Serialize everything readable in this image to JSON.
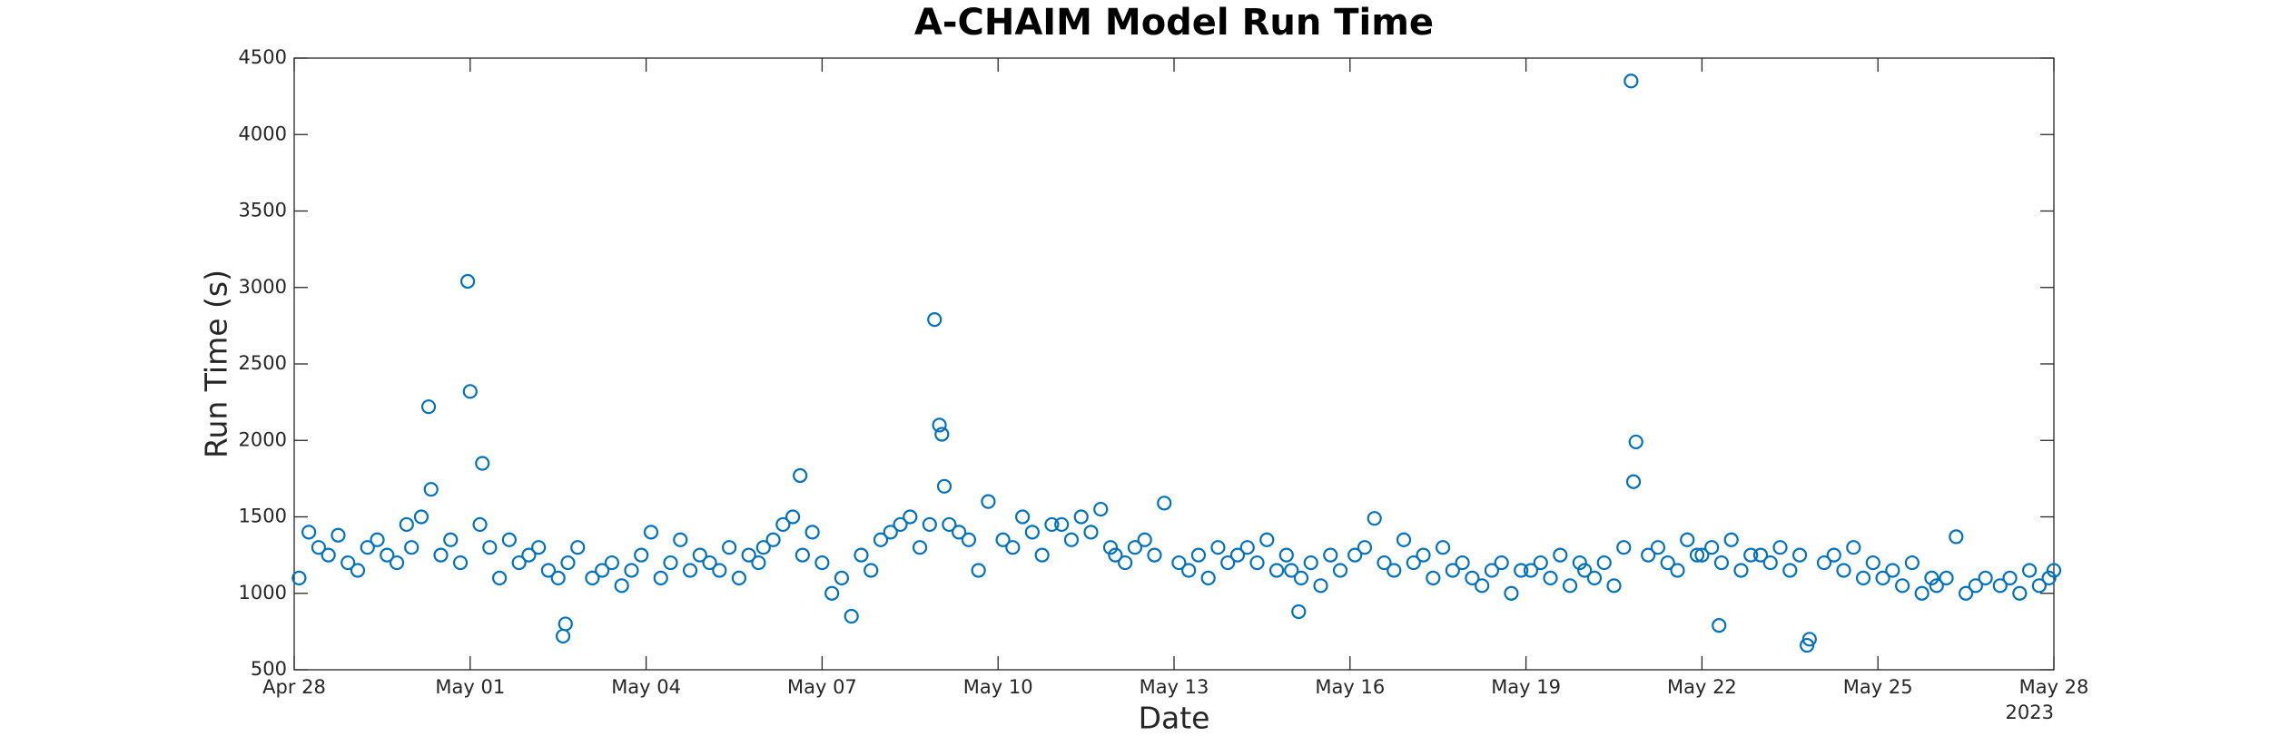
{
  "chart_data": {
    "type": "scatter",
    "title": "A-CHAIM Model Run Time",
    "x_label": "Date",
    "y_label": "Run Time (s)",
    "x_year_label": "2023",
    "color": "#0072BD",
    "grid": false,
    "xlim": [
      "2023-04-28T00:00",
      "2023-05-28T00:00"
    ],
    "xticks": [
      {
        "value": "2023-04-28T00:00",
        "label": "Apr 28"
      },
      {
        "value": "2023-05-01T00:00",
        "label": "May 01"
      },
      {
        "value": "2023-05-04T00:00",
        "label": "May 04"
      },
      {
        "value": "2023-05-07T00:00",
        "label": "May 07"
      },
      {
        "value": "2023-05-10T00:00",
        "label": "May 10"
      },
      {
        "value": "2023-05-13T00:00",
        "label": "May 13"
      },
      {
        "value": "2023-05-16T00:00",
        "label": "May 16"
      },
      {
        "value": "2023-05-19T00:00",
        "label": "May 19"
      },
      {
        "value": "2023-05-22T00:00",
        "label": "May 22"
      },
      {
        "value": "2023-05-25T00:00",
        "label": "May 25"
      },
      {
        "value": "2023-05-28T00:00",
        "label": "May 28"
      }
    ],
    "ylim": [
      500,
      4500
    ],
    "yticks": [
      500,
      1000,
      1500,
      2000,
      2500,
      3000,
      3500,
      4000,
      4500
    ],
    "x": [
      "2023-04-28T02:00",
      "2023-04-28T06:00",
      "2023-04-28T10:00",
      "2023-04-28T14:00",
      "2023-04-28T18:00",
      "2023-04-28T22:00",
      "2023-04-29T02:00",
      "2023-04-29T06:00",
      "2023-04-29T10:00",
      "2023-04-29T14:00",
      "2023-04-29T18:00",
      "2023-04-29T22:00",
      "2023-04-30T00:00",
      "2023-04-30T04:00",
      "2023-04-30T07:00",
      "2023-04-30T08:00",
      "2023-04-30T12:00",
      "2023-04-30T16:00",
      "2023-04-30T20:00",
      "2023-04-30T23:00",
      "2023-05-01T00:00",
      "2023-05-01T04:00",
      "2023-05-01T05:00",
      "2023-05-01T08:00",
      "2023-05-01T12:00",
      "2023-05-01T16:00",
      "2023-05-01T20:00",
      "2023-05-02T00:00",
      "2023-05-02T04:00",
      "2023-05-02T08:00",
      "2023-05-02T12:00",
      "2023-05-02T14:00",
      "2023-05-02T15:00",
      "2023-05-02T16:00",
      "2023-05-02T20:00",
      "2023-05-03T02:00",
      "2023-05-03T06:00",
      "2023-05-03T10:00",
      "2023-05-03T14:00",
      "2023-05-03T18:00",
      "2023-05-03T22:00",
      "2023-05-04T02:00",
      "2023-05-04T06:00",
      "2023-05-04T10:00",
      "2023-05-04T14:00",
      "2023-05-04T18:00",
      "2023-05-04T22:00",
      "2023-05-05T02:00",
      "2023-05-05T06:00",
      "2023-05-05T10:00",
      "2023-05-05T14:00",
      "2023-05-05T18:00",
      "2023-05-05T22:00",
      "2023-05-06T00:00",
      "2023-05-06T04:00",
      "2023-05-06T08:00",
      "2023-05-06T12:00",
      "2023-05-06T15:00",
      "2023-05-06T16:00",
      "2023-05-06T20:00",
      "2023-05-07T00:00",
      "2023-05-07T04:00",
      "2023-05-07T08:00",
      "2023-05-07T12:00",
      "2023-05-07T16:00",
      "2023-05-07T20:00",
      "2023-05-08T00:00",
      "2023-05-08T04:00",
      "2023-05-08T08:00",
      "2023-05-08T12:00",
      "2023-05-08T16:00",
      "2023-05-08T20:00",
      "2023-05-08T22:00",
      "2023-05-09T00:00",
      "2023-05-09T01:00",
      "2023-05-09T02:00",
      "2023-05-09T04:00",
      "2023-05-09T08:00",
      "2023-05-09T12:00",
      "2023-05-09T16:00",
      "2023-05-09T20:00",
      "2023-05-10T02:00",
      "2023-05-10T06:00",
      "2023-05-10T10:00",
      "2023-05-10T14:00",
      "2023-05-10T18:00",
      "2023-05-10T22:00",
      "2023-05-11T02:00",
      "2023-05-11T06:00",
      "2023-05-11T10:00",
      "2023-05-11T14:00",
      "2023-05-11T18:00",
      "2023-05-11T22:00",
      "2023-05-12T00:00",
      "2023-05-12T04:00",
      "2023-05-12T08:00",
      "2023-05-12T12:00",
      "2023-05-12T16:00",
      "2023-05-12T20:00",
      "2023-05-13T02:00",
      "2023-05-13T06:00",
      "2023-05-13T10:00",
      "2023-05-13T14:00",
      "2023-05-13T18:00",
      "2023-05-13T22:00",
      "2023-05-14T02:00",
      "2023-05-14T06:00",
      "2023-05-14T10:00",
      "2023-05-14T14:00",
      "2023-05-14T18:00",
      "2023-05-14T22:00",
      "2023-05-15T00:00",
      "2023-05-15T03:00",
      "2023-05-15T04:00",
      "2023-05-15T08:00",
      "2023-05-15T12:00",
      "2023-05-15T16:00",
      "2023-05-15T20:00",
      "2023-05-16T02:00",
      "2023-05-16T06:00",
      "2023-05-16T10:00",
      "2023-05-16T14:00",
      "2023-05-16T18:00",
      "2023-05-16T22:00",
      "2023-05-17T02:00",
      "2023-05-17T06:00",
      "2023-05-17T10:00",
      "2023-05-17T14:00",
      "2023-05-17T18:00",
      "2023-05-17T22:00",
      "2023-05-18T02:00",
      "2023-05-18T06:00",
      "2023-05-18T10:00",
      "2023-05-18T14:00",
      "2023-05-18T18:00",
      "2023-05-18T22:00",
      "2023-05-19T02:00",
      "2023-05-19T06:00",
      "2023-05-19T10:00",
      "2023-05-19T14:00",
      "2023-05-19T18:00",
      "2023-05-19T22:00",
      "2023-05-20T00:00",
      "2023-05-20T04:00",
      "2023-05-20T08:00",
      "2023-05-20T12:00",
      "2023-05-20T16:00",
      "2023-05-20T19:00",
      "2023-05-20T20:00",
      "2023-05-20T21:00",
      "2023-05-21T02:00",
      "2023-05-21T06:00",
      "2023-05-21T10:00",
      "2023-05-21T14:00",
      "2023-05-21T18:00",
      "2023-05-21T22:00",
      "2023-05-22T00:00",
      "2023-05-22T04:00",
      "2023-05-22T07:00",
      "2023-05-22T08:00",
      "2023-05-22T12:00",
      "2023-05-22T16:00",
      "2023-05-22T20:00",
      "2023-05-23T00:00",
      "2023-05-23T04:00",
      "2023-05-23T08:00",
      "2023-05-23T12:00",
      "2023-05-23T16:00",
      "2023-05-23T19:00",
      "2023-05-23T20:00",
      "2023-05-24T02:00",
      "2023-05-24T06:00",
      "2023-05-24T10:00",
      "2023-05-24T14:00",
      "2023-05-24T18:00",
      "2023-05-24T22:00",
      "2023-05-25T02:00",
      "2023-05-25T06:00",
      "2023-05-25T10:00",
      "2023-05-25T14:00",
      "2023-05-25T18:00",
      "2023-05-25T22:00",
      "2023-05-26T00:00",
      "2023-05-26T04:00",
      "2023-05-26T08:00",
      "2023-05-26T12:00",
      "2023-05-26T16:00",
      "2023-05-26T20:00",
      "2023-05-27T02:00",
      "2023-05-27T06:00",
      "2023-05-27T10:00",
      "2023-05-27T14:00",
      "2023-05-27T18:00",
      "2023-05-27T22:00",
      "2023-05-28T00:00"
    ],
    "values": [
      1100,
      1400,
      1300,
      1250,
      1380,
      1200,
      1150,
      1300,
      1350,
      1250,
      1200,
      1450,
      1300,
      1500,
      2220,
      1680,
      1250,
      1350,
      1200,
      3040,
      2320,
      1450,
      1850,
      1300,
      1100,
      1350,
      1200,
      1250,
      1300,
      1150,
      1100,
      720,
      800,
      1200,
      1300,
      1100,
      1150,
      1200,
      1050,
      1150,
      1250,
      1400,
      1100,
      1200,
      1350,
      1150,
      1250,
      1200,
      1150,
      1300,
      1100,
      1250,
      1200,
      1300,
      1350,
      1450,
      1500,
      1770,
      1250,
      1400,
      1200,
      1000,
      1100,
      850,
      1250,
      1150,
      1350,
      1400,
      1450,
      1500,
      1300,
      1450,
      2790,
      2100,
      2040,
      1700,
      1450,
      1400,
      1350,
      1150,
      1600,
      1350,
      1300,
      1500,
      1400,
      1250,
      1450,
      1450,
      1350,
      1500,
      1400,
      1550,
      1300,
      1250,
      1200,
      1300,
      1350,
      1250,
      1590,
      1200,
      1150,
      1250,
      1100,
      1300,
      1200,
      1250,
      1300,
      1200,
      1350,
      1150,
      1250,
      1150,
      880,
      1100,
      1200,
      1050,
      1250,
      1150,
      1250,
      1300,
      1490,
      1200,
      1150,
      1350,
      1200,
      1250,
      1100,
      1300,
      1150,
      1200,
      1100,
      1050,
      1150,
      1200,
      1000,
      1150,
      1150,
      1200,
      1100,
      1250,
      1050,
      1200,
      1150,
      1100,
      1200,
      1050,
      1300,
      4350,
      1730,
      1990,
      1250,
      1300,
      1200,
      1150,
      1350,
      1250,
      1250,
      1300,
      790,
      1200,
      1350,
      1150,
      1250,
      1250,
      1200,
      1300,
      1150,
      1250,
      660,
      700,
      1200,
      1250,
      1150,
      1300,
      1100,
      1200,
      1100,
      1150,
      1050,
      1200,
      1000,
      1100,
      1050,
      1100,
      1370,
      1000,
      1050,
      1100,
      1050,
      1100,
      1000,
      1150,
      1050,
      1100,
      1150
    ]
  }
}
